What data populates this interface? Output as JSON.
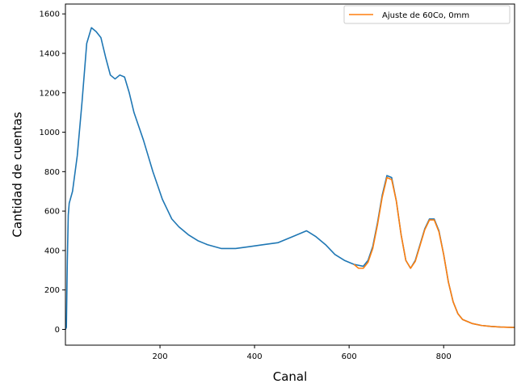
{
  "chart_data": {
    "type": "line",
    "xlabel": "Canal",
    "ylabel": "Cantidad de cuentas",
    "xlim": [
      0,
      950
    ],
    "ylim": [
      -80,
      1650
    ],
    "xticks": [
      200,
      400,
      600,
      800
    ],
    "yticks": [
      0,
      200,
      400,
      600,
      800,
      1000,
      1200,
      1400,
      1600
    ],
    "grid": false,
    "legend_position": "top-right",
    "series": [
      {
        "role": "data",
        "color": "#1f77b4",
        "x": [
          0,
          2,
          4,
          6,
          8,
          15,
          25,
          35,
          45,
          55,
          65,
          75,
          85,
          95,
          105,
          115,
          125,
          135,
          145,
          155,
          165,
          175,
          185,
          195,
          205,
          215,
          225,
          240,
          260,
          280,
          300,
          330,
          360,
          390,
          420,
          450,
          480,
          510,
          530,
          550,
          570,
          590,
          610,
          630,
          640,
          650,
          660,
          670,
          680,
          690,
          700,
          710,
          720,
          730,
          740,
          750,
          760,
          770,
          780,
          790,
          800,
          810,
          820,
          830,
          840,
          860,
          880,
          900,
          920,
          950
        ],
        "y": [
          0,
          10,
          350,
          580,
          640,
          700,
          880,
          1150,
          1450,
          1530,
          1510,
          1480,
          1380,
          1290,
          1270,
          1290,
          1280,
          1200,
          1100,
          1030,
          960,
          880,
          800,
          730,
          660,
          610,
          560,
          520,
          480,
          450,
          430,
          410,
          410,
          420,
          430,
          440,
          470,
          500,
          470,
          430,
          380,
          350,
          330,
          320,
          350,
          420,
          540,
          680,
          780,
          770,
          650,
          480,
          350,
          310,
          350,
          430,
          510,
          560,
          560,
          500,
          380,
          240,
          140,
          80,
          50,
          30,
          20,
          15,
          12,
          10
        ]
      },
      {
        "role": "fit",
        "name": "Ajuste de 60Co, 0mm",
        "color": "#ff7f0e",
        "x": [
          610,
          620,
          630,
          640,
          650,
          660,
          670,
          680,
          690,
          700,
          710,
          720,
          730,
          740,
          750,
          760,
          770,
          780,
          790,
          800,
          810,
          820,
          830,
          840,
          860,
          880,
          900,
          920,
          950
        ],
        "y": [
          330,
          310,
          310,
          340,
          410,
          530,
          670,
          770,
          760,
          650,
          480,
          350,
          310,
          345,
          425,
          505,
          555,
          555,
          495,
          380,
          240,
          140,
          80,
          50,
          30,
          20,
          15,
          12,
          10
        ]
      }
    ]
  }
}
